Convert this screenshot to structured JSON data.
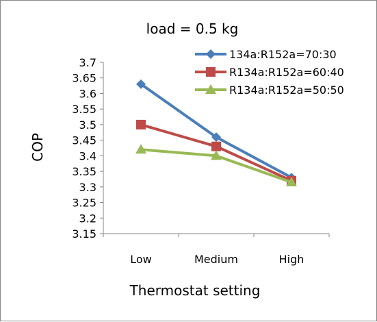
{
  "chart_data": {
    "type": "line",
    "title": "load = 0.5 kg",
    "xlabel": "Thermostat setting",
    "ylabel": "COP",
    "categories": [
      "Low",
      "Medium",
      "High"
    ],
    "ylim": [
      3.15,
      3.7
    ],
    "yticks": [
      "3.15",
      "3.2",
      "3.25",
      "3.3",
      "3.35",
      "3.4",
      "3.45",
      "3.5",
      "3.55",
      "3.6",
      "3.65",
      "3.7"
    ],
    "grid": false,
    "legend_position": "top-right",
    "series": [
      {
        "name": "134a:R152a=70:30",
        "values": [
          3.63,
          3.46,
          3.33
        ],
        "color": "#4a7ebb",
        "marker": "diamond"
      },
      {
        "name": "R134a:R152a=60:40",
        "values": [
          3.5,
          3.43,
          3.32
        ],
        "color": "#be4b48",
        "marker": "square"
      },
      {
        "name": "R134a:R152a=50:50",
        "values": [
          3.42,
          3.4,
          3.315
        ],
        "color": "#98b954",
        "marker": "triangle"
      }
    ]
  }
}
